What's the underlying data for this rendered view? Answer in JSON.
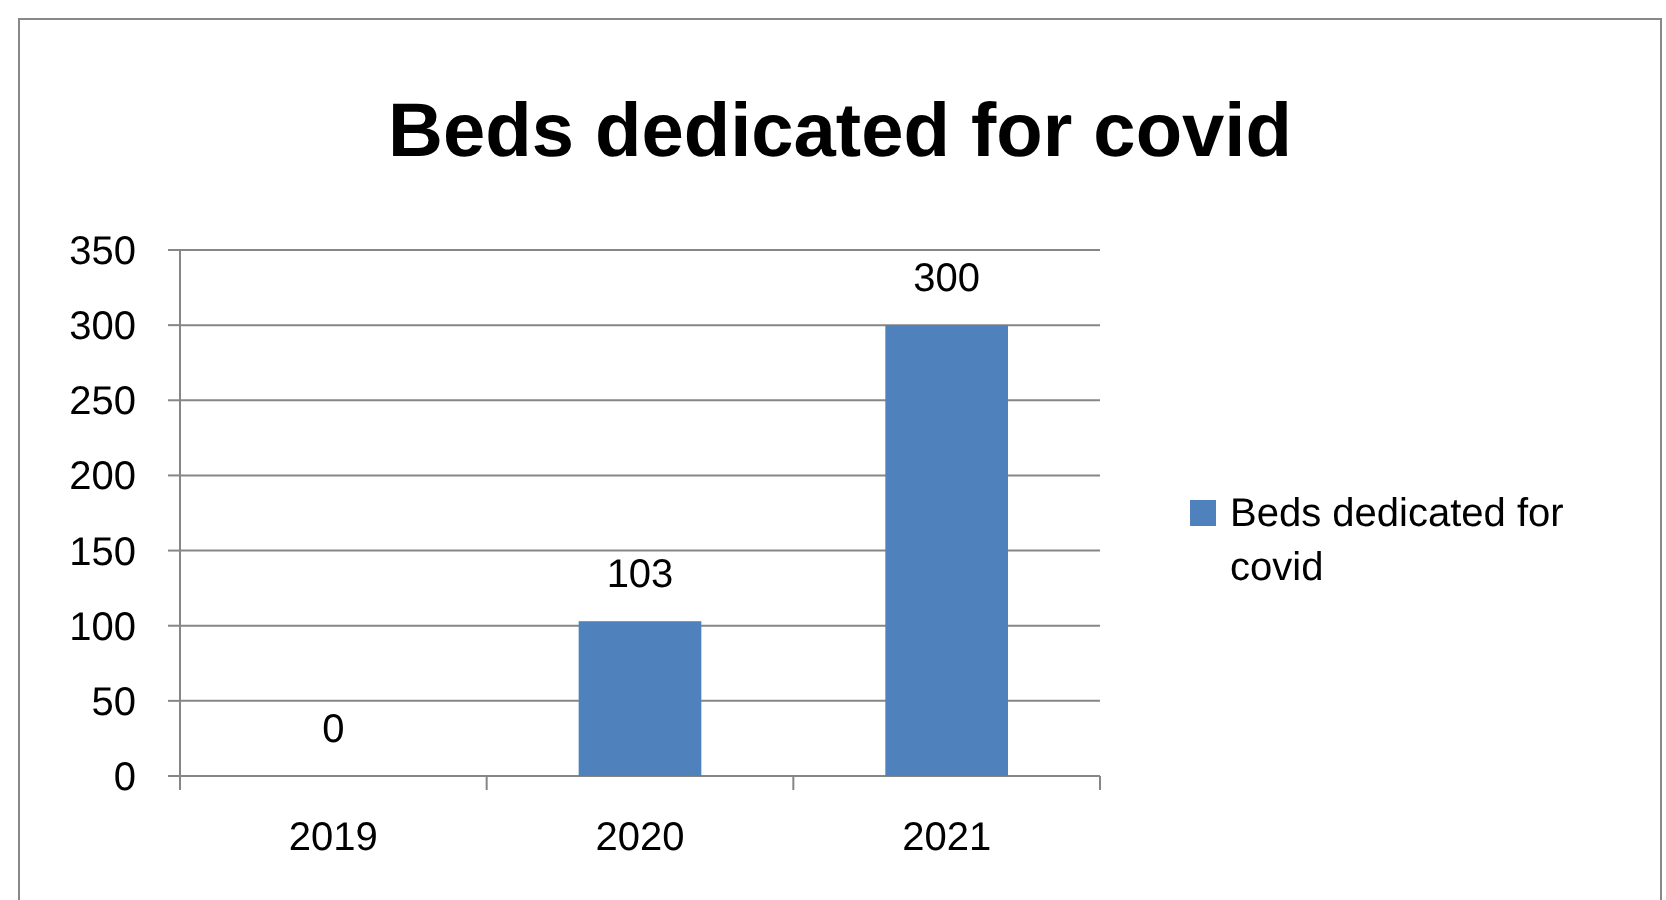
{
  "chart_data": {
    "type": "bar",
    "title": "Beds dedicated for covid",
    "categories": [
      "2019",
      "2020",
      "2021"
    ],
    "series": [
      {
        "name": "Beds dedicated for covid",
        "color": "#4f81bd",
        "values": [
          0,
          103,
          300
        ]
      }
    ],
    "ylim": [
      0,
      350
    ],
    "yticks": [
      0,
      50,
      100,
      150,
      200,
      250,
      300,
      350
    ],
    "grid": "y",
    "legend": "right",
    "data_labels": true
  }
}
